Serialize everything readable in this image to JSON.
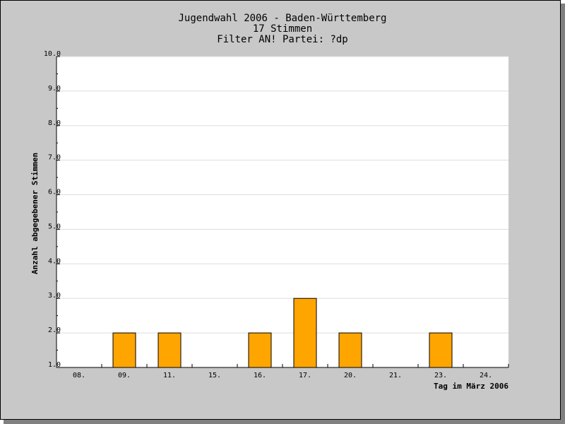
{
  "chart_data": {
    "type": "bar",
    "title_lines": [
      "Jugendwahl 2006 - Baden-Württemberg",
      "17 Stimmen",
      "Filter AN! Partei: ?dp"
    ],
    "xlabel": "Tag im März 2006",
    "ylabel": "Anzahl abgegebener Stimmen",
    "categories": [
      "08.",
      "09.",
      "11.",
      "15.",
      "16.",
      "17.",
      "20.",
      "21.",
      "23.",
      "24."
    ],
    "values": [
      1,
      2,
      2,
      1,
      2,
      3,
      2,
      1,
      2,
      1
    ],
    "ylim": [
      1,
      10
    ],
    "yticks": [
      "1.0",
      "2.0",
      "3.0",
      "4.0",
      "5.0",
      "6.0",
      "7.0",
      "8.0",
      "9.0",
      "10.0"
    ],
    "grid": true,
    "colors": {
      "bar": "#ffa500",
      "bar_border": "#000000",
      "plot_bg": "#ffffff",
      "frame_bg": "#c8c8c8",
      "grid": "#dddddd"
    }
  }
}
